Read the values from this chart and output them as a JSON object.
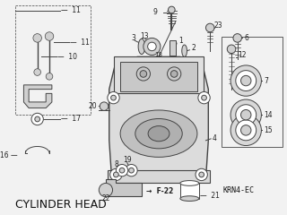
{
  "title": "CYLINDER HEAD",
  "subtitle": "KRN4-EC",
  "bg_color": "#f2f2f2",
  "text_color": "#111111",
  "title_fontsize": 9,
  "subtitle_fontsize": 6,
  "fig_width": 3.2,
  "fig_height": 2.4,
  "dpi": 100,
  "line_color": "#444444",
  "part_font_size": 5.5,
  "label_color": "#222222"
}
